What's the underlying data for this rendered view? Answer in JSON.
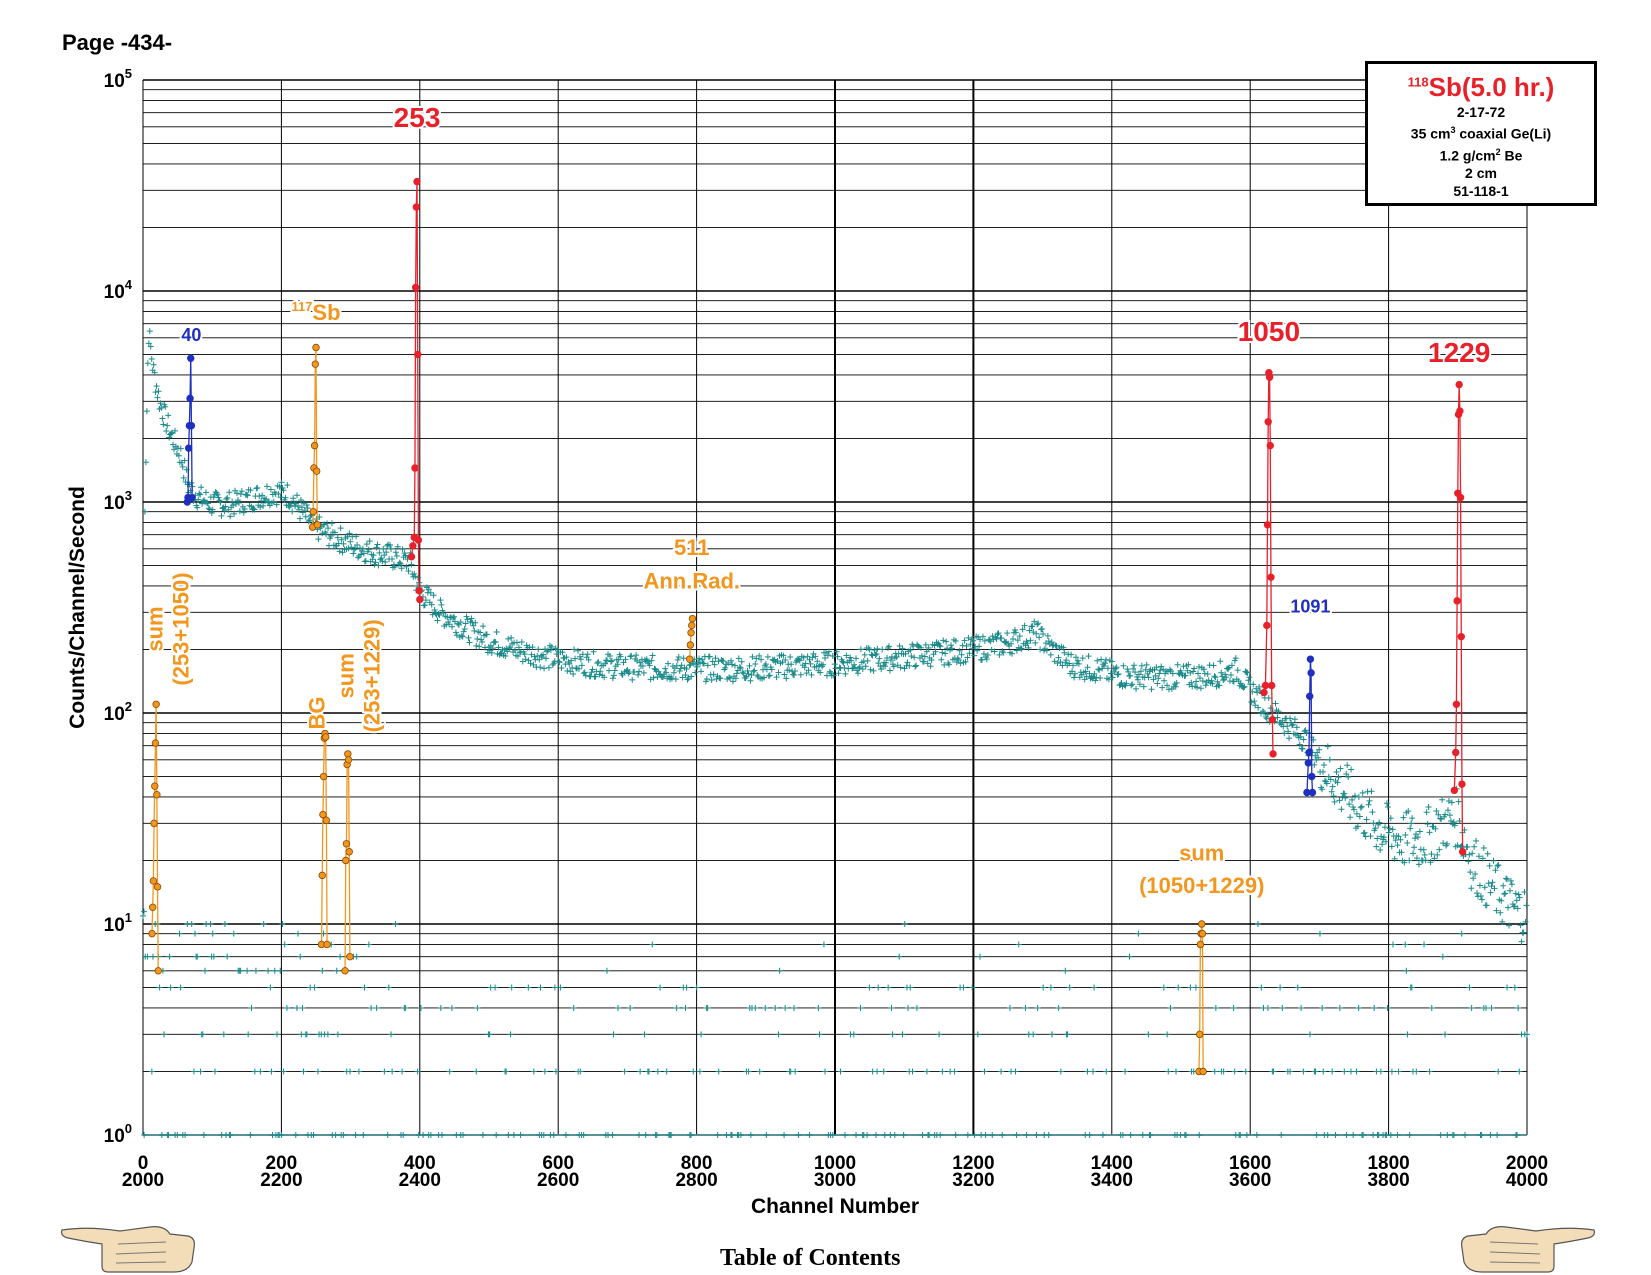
{
  "page": {
    "label": "Page -434-",
    "toc_label": "Table of Contents"
  },
  "info_box": {
    "title_sup": "118",
    "title": "Sb(5.0 hr.)",
    "date": "2-17-72",
    "detector_pre": "35 cm",
    "detector_sup": "3",
    "detector_post": " coaxial Ge(Li)",
    "absorber_pre": "1.2 g/cm",
    "absorber_sup": "2",
    "absorber_post": " Be",
    "distance": "2 cm",
    "code": "51-118-1"
  },
  "colors": {
    "background_points": "#1a8a8a",
    "main_peaks": "#e8202a",
    "secondary_peaks": "#1f2fc0",
    "sum_bg_peaks": "#f2961e",
    "grid": "#000000"
  },
  "chart_data": {
    "type": "scatter",
    "xlabel": "Channel Number",
    "ylabel": "Counts/Channel/Second",
    "y_scale": "log",
    "ylim": [
      1,
      100000
    ],
    "xlim": [
      0,
      2000
    ],
    "x_ticks_top": [
      "0",
      "200",
      "400",
      "600",
      "800",
      "1000",
      "1200",
      "1400",
      "1600",
      "1800",
      "2000"
    ],
    "x_ticks_bottom": [
      "2000",
      "2200",
      "2400",
      "2600",
      "2800",
      "3000",
      "3200",
      "3400",
      "3600",
      "3800",
      "4000"
    ],
    "y_ticks": [
      {
        "base": "10",
        "exp": "0",
        "value": 1
      },
      {
        "base": "10",
        "exp": "1",
        "value": 10
      },
      {
        "base": "10",
        "exp": "2",
        "value": 100
      },
      {
        "base": "10",
        "exp": "3",
        "value": 1000
      },
      {
        "base": "10",
        "exp": "4",
        "value": 10000
      },
      {
        "base": "10",
        "exp": "5",
        "value": 100000
      }
    ],
    "grid": true,
    "continuum": [
      [
        2,
        750
      ],
      [
        8,
        6500
      ],
      [
        15,
        4200
      ],
      [
        25,
        2900
      ],
      [
        40,
        2100
      ],
      [
        55,
        1650
      ],
      [
        65,
        1200
      ],
      [
        80,
        1050
      ],
      [
        100,
        980
      ],
      [
        130,
        980
      ],
      [
        160,
        1050
      ],
      [
        190,
        1120
      ],
      [
        210,
        1080
      ],
      [
        230,
        900
      ],
      [
        250,
        760
      ],
      [
        270,
        700
      ],
      [
        300,
        630
      ],
      [
        330,
        580
      ],
      [
        360,
        550
      ],
      [
        385,
        520
      ],
      [
        400,
        380
      ],
      [
        430,
        300
      ],
      [
        460,
        260
      ],
      [
        500,
        220
      ],
      [
        550,
        195
      ],
      [
        600,
        180
      ],
      [
        650,
        170
      ],
      [
        700,
        165
      ],
      [
        750,
        163
      ],
      [
        800,
        162
      ],
      [
        850,
        162
      ],
      [
        900,
        164
      ],
      [
        950,
        168
      ],
      [
        1000,
        172
      ],
      [
        1050,
        178
      ],
      [
        1100,
        185
      ],
      [
        1150,
        192
      ],
      [
        1200,
        200
      ],
      [
        1250,
        215
      ],
      [
        1290,
        240
      ],
      [
        1310,
        205
      ],
      [
        1340,
        170
      ],
      [
        1380,
        160
      ],
      [
        1420,
        150
      ],
      [
        1460,
        148
      ],
      [
        1500,
        148
      ],
      [
        1540,
        150
      ],
      [
        1580,
        160
      ],
      [
        1600,
        130
      ],
      [
        1620,
        110
      ],
      [
        1650,
        90
      ],
      [
        1680,
        75
      ],
      [
        1700,
        60
      ],
      [
        1730,
        45
      ],
      [
        1760,
        35
      ],
      [
        1790,
        28
      ],
      [
        1820,
        25
      ],
      [
        1850,
        25
      ],
      [
        1880,
        30
      ],
      [
        1900,
        32
      ],
      [
        1920,
        20
      ],
      [
        1950,
        15
      ],
      [
        1980,
        12
      ],
      [
        2000,
        11
      ]
    ],
    "low_count_levels": [
      1,
      2,
      3,
      4,
      5,
      6,
      7,
      8,
      9,
      10
    ],
    "peaks": [
      {
        "label": "40",
        "group": "secondary",
        "points": [
          [
            64,
            1000
          ],
          [
            65,
            1050
          ],
          [
            66,
            1800
          ],
          [
            67,
            2300
          ],
          [
            68,
            3100
          ],
          [
            69,
            4800
          ],
          [
            70,
            2300
          ],
          [
            71,
            1050
          ]
        ]
      },
      {
        "label": "",
        "group": "sum_bg",
        "points": [
          [
            245,
            760
          ],
          [
            246,
            900
          ],
          [
            247,
            1450
          ],
          [
            248,
            1850
          ],
          [
            249,
            4500
          ],
          [
            250,
            5400
          ],
          [
            251,
            1400
          ],
          [
            252,
            780
          ]
        ]
      },
      {
        "label": "253",
        "group": "main",
        "points": [
          [
            388,
            550
          ],
          [
            390,
            620
          ],
          [
            392,
            680
          ],
          [
            393,
            1450
          ],
          [
            394,
            10400
          ],
          [
            395,
            25000
          ],
          [
            396,
            33000
          ],
          [
            397,
            5000
          ],
          [
            398,
            660
          ],
          [
            399,
            380
          ],
          [
            400,
            345
          ]
        ]
      },
      {
        "label": "511",
        "group": "sum_bg",
        "points": [
          [
            790,
            180
          ],
          [
            791,
            210
          ],
          [
            792,
            240
          ],
          [
            793,
            260
          ],
          [
            794,
            280
          ]
        ]
      },
      {
        "label": "1050",
        "group": "main",
        "points": [
          [
            1620,
            125
          ],
          [
            1622,
            135
          ],
          [
            1624,
            260
          ],
          [
            1625,
            780
          ],
          [
            1626,
            2400
          ],
          [
            1627,
            4100
          ],
          [
            1628,
            3900
          ],
          [
            1629,
            1850
          ],
          [
            1630,
            440
          ],
          [
            1631,
            135
          ],
          [
            1632,
            93
          ],
          [
            1633,
            64
          ]
        ]
      },
      {
        "label": "1091",
        "group": "secondary",
        "points": [
          [
            1682,
            42
          ],
          [
            1684,
            58
          ],
          [
            1685,
            65
          ],
          [
            1686,
            120
          ],
          [
            1687,
            180
          ],
          [
            1688,
            155
          ],
          [
            1689,
            50
          ],
          [
            1690,
            42
          ]
        ]
      },
      {
        "label": "1229",
        "group": "main",
        "points": [
          [
            1895,
            43
          ],
          [
            1897,
            65
          ],
          [
            1898,
            110
          ],
          [
            1899,
            340
          ],
          [
            1900,
            1100
          ],
          [
            1901,
            2600
          ],
          [
            1902,
            3600
          ],
          [
            1903,
            2700
          ],
          [
            1904,
            1050
          ],
          [
            1905,
            230
          ],
          [
            1906,
            46
          ],
          [
            1907,
            22
          ]
        ]
      },
      {
        "label": "sum (253+1050)",
        "group": "sum_bg",
        "points": [
          [
            13,
            9
          ],
          [
            14,
            12
          ],
          [
            15,
            16
          ],
          [
            16,
            30
          ],
          [
            17,
            45
          ],
          [
            18,
            72
          ],
          [
            19,
            110
          ],
          [
            20,
            41
          ],
          [
            21,
            15
          ],
          [
            22,
            6
          ]
        ]
      },
      {
        "label": "BG",
        "group": "sum_bg",
        "points": [
          [
            258,
            8
          ],
          [
            259,
            17
          ],
          [
            260,
            33
          ],
          [
            261,
            50
          ],
          [
            262,
            76
          ],
          [
            263,
            80
          ],
          [
            264,
            77
          ],
          [
            265,
            31
          ],
          [
            266,
            8
          ]
        ]
      },
      {
        "label": "sum (253+1229)",
        "group": "sum_bg",
        "points": [
          [
            292,
            6
          ],
          [
            293,
            20
          ],
          [
            294,
            24
          ],
          [
            295,
            57
          ],
          [
            296,
            64
          ],
          [
            297,
            60
          ],
          [
            298,
            22
          ],
          [
            299,
            7
          ]
        ]
      },
      {
        "label": "sum (1050+1229)",
        "group": "sum_bg",
        "points": [
          [
            1526,
            2
          ],
          [
            1527,
            3
          ],
          [
            1528,
            8
          ],
          [
            1529,
            9
          ],
          [
            1530,
            10
          ],
          [
            1531,
            9
          ],
          [
            1532,
            2
          ]
        ]
      }
    ],
    "annotations": [
      {
        "text": "40",
        "sup": "",
        "group": "secondary",
        "x": 70,
        "y": 5800
      },
      {
        "text": "Sb",
        "sup": "117",
        "group": "sum_bg",
        "x": 250,
        "y": 7300
      },
      {
        "text": "253",
        "sup": "",
        "group": "main",
        "x": 396,
        "y": 60000
      },
      {
        "text": "511",
        "sup": "",
        "group": "sum_bg",
        "x": 793,
        "y": 560
      },
      {
        "text": "Ann.Rad.",
        "sup": "",
        "group": "sum_bg",
        "x": 793,
        "y": 390
      },
      {
        "text": "1050",
        "sup": "",
        "group": "main",
        "x": 1627,
        "y": 5800
      },
      {
        "text": "1091",
        "sup": "",
        "group": "secondary",
        "x": 1687,
        "y": 300
      },
      {
        "text": "1229",
        "sup": "",
        "group": "main",
        "x": 1902,
        "y": 4600
      },
      {
        "text": "sum",
        "sup": "",
        "group": "sum_bg",
        "x": 1530,
        "y": 20
      },
      {
        "text": "(1050+1229)",
        "sup": "",
        "group": "sum_bg",
        "x": 1530,
        "y": 14
      }
    ],
    "vertical_annotations": [
      {
        "line1": "sum",
        "line2": "(253+1050)",
        "group": "sum_bg",
        "x": 28,
        "y": 250
      },
      {
        "line1": "BG",
        "line2": "",
        "group": "sum_bg",
        "x": 262,
        "y": 100
      },
      {
        "line1": "sum",
        "line2": "(253+1229)",
        "group": "sum_bg",
        "x": 304,
        "y": 150
      }
    ]
  }
}
